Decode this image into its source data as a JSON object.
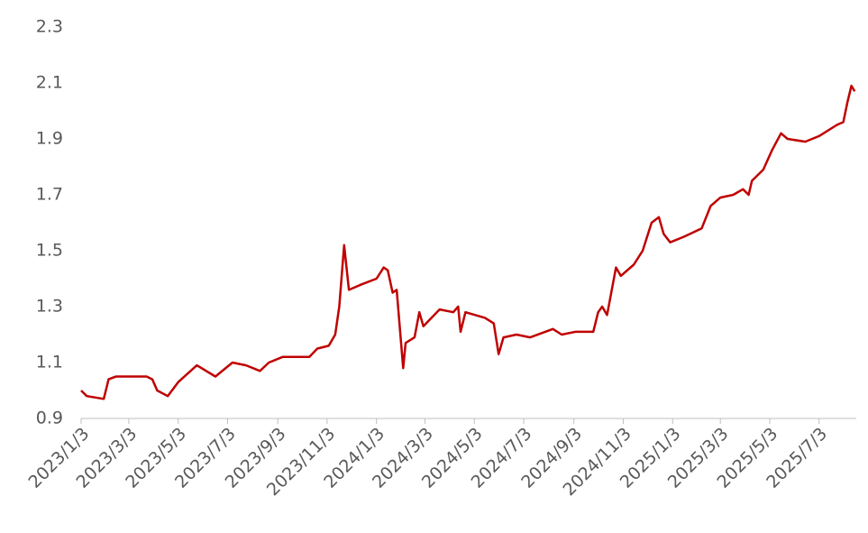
{
  "chart_data": {
    "type": "line",
    "color": "#c00000",
    "x": [
      "2023/1/3",
      "2023/1/10",
      "2023/1/31",
      "2023/2/6",
      "2023/2/15",
      "2023/3/10",
      "2023/3/25",
      "2023/4/1",
      "2023/4/7",
      "2023/4/20",
      "2023/5/3",
      "2023/5/26",
      "2023/6/18",
      "2023/7/9",
      "2023/7/26",
      "2023/8/12",
      "2023/8/23",
      "2023/9/9",
      "2023/10/12",
      "2023/10/22",
      "2023/11/5",
      "2023/11/13",
      "2023/11/18",
      "2023/11/24",
      "2023/11/30",
      "2023/12/16",
      "2024/1/3",
      "2024/1/12",
      "2024/1/17",
      "2024/1/23",
      "2024/1/28",
      "2024/2/5",
      "2024/2/8",
      "2024/2/19",
      "2024/2/25",
      "2024/3/1",
      "2024/3/21",
      "2024/4/7",
      "2024/4/13",
      "2024/4/16",
      "2024/4/22",
      "2024/5/16",
      "2024/5/27",
      "2024/6/2",
      "2024/6/8",
      "2024/6/24",
      "2024/7/11",
      "2024/8/8",
      "2024/8/19",
      "2024/9/5",
      "2024/9/27",
      "2024/10/3",
      "2024/10/8",
      "2024/10/14",
      "2024/10/25",
      "2024/10/31",
      "2024/11/16",
      "2024/11/27",
      "2024/12/8",
      "2024/12/17",
      "2024/12/23",
      "2024/12/31",
      "2025/1/17",
      "2025/2/8",
      "2025/2/19",
      "2025/3/3",
      "2025/3/19",
      "2025/3/31",
      "2025/4/7",
      "2025/4/11",
      "2025/4/25",
      "2025/5/6",
      "2025/5/17",
      "2025/5/25",
      "2025/6/16",
      "2025/7/3",
      "2025/7/25",
      "2025/8/2",
      "2025/8/7",
      "2025/8/12",
      "2025/8/16"
    ],
    "values": [
      1.0,
      0.98,
      0.97,
      1.04,
      1.05,
      1.05,
      1.05,
      1.04,
      1.0,
      0.98,
      1.03,
      1.09,
      1.05,
      1.1,
      1.09,
      1.07,
      1.1,
      1.12,
      1.12,
      1.15,
      1.16,
      1.2,
      1.3,
      1.52,
      1.36,
      1.38,
      1.4,
      1.44,
      1.43,
      1.35,
      1.36,
      1.08,
      1.17,
      1.19,
      1.28,
      1.23,
      1.29,
      1.28,
      1.3,
      1.21,
      1.28,
      1.26,
      1.24,
      1.13,
      1.19,
      1.2,
      1.19,
      1.22,
      1.2,
      1.21,
      1.21,
      1.28,
      1.3,
      1.27,
      1.44,
      1.41,
      1.45,
      1.5,
      1.6,
      1.62,
      1.56,
      1.53,
      1.55,
      1.58,
      1.66,
      1.69,
      1.7,
      1.72,
      1.7,
      1.75,
      1.79,
      1.86,
      1.92,
      1.9,
      1.89,
      1.91,
      1.95,
      1.96,
      2.03,
      2.09,
      2.07
    ],
    "xlim": [
      "2023/1/3",
      "2025/8/18"
    ],
    "xticks": [
      "2023/1/3",
      "2023/3/3",
      "2023/5/3",
      "2023/7/3",
      "2023/9/3",
      "2023/11/3",
      "2024/1/3",
      "2024/3/3",
      "2024/5/3",
      "2024/7/3",
      "2024/9/3",
      "2024/11/3",
      "2025/1/3",
      "2025/3/3",
      "2025/5/3",
      "2025/7/3"
    ],
    "ylim": [
      0.9,
      2.3
    ],
    "yticks": [
      0.9,
      1.1,
      1.3,
      1.5,
      1.7,
      1.9,
      2.1,
      2.3
    ],
    "grid": false
  }
}
